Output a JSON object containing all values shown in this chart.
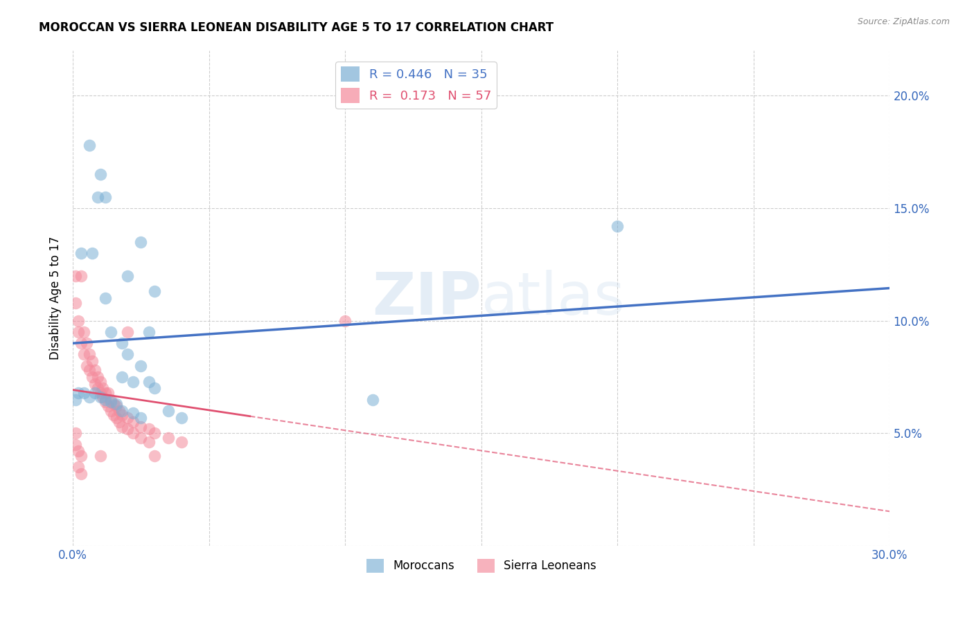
{
  "title": "MOROCCAN VS SIERRA LEONEAN DISABILITY AGE 5 TO 17 CORRELATION CHART",
  "source": "Source: ZipAtlas.com",
  "ylabel": "Disability Age 5 to 17",
  "xlim": [
    0,
    0.3
  ],
  "ylim": [
    0,
    0.22
  ],
  "xticks": [
    0.0,
    0.05,
    0.1,
    0.15,
    0.2,
    0.25,
    0.3
  ],
  "yticks": [
    0.0,
    0.05,
    0.1,
    0.15,
    0.2
  ],
  "blue_R": 0.446,
  "blue_N": 35,
  "pink_R": 0.173,
  "pink_N": 57,
  "blue_color": "#7BAFD4",
  "pink_color": "#F4899A",
  "blue_line_color": "#4472C4",
  "pink_line_color": "#E05070",
  "blue_points": [
    [
      0.006,
      0.178
    ],
    [
      0.01,
      0.165
    ],
    [
      0.009,
      0.155
    ],
    [
      0.012,
      0.155
    ],
    [
      0.003,
      0.13
    ],
    [
      0.007,
      0.13
    ],
    [
      0.025,
      0.135
    ],
    [
      0.02,
      0.12
    ],
    [
      0.012,
      0.11
    ],
    [
      0.03,
      0.113
    ],
    [
      0.014,
      0.095
    ],
    [
      0.018,
      0.09
    ],
    [
      0.02,
      0.085
    ],
    [
      0.025,
      0.08
    ],
    [
      0.028,
      0.095
    ],
    [
      0.018,
      0.075
    ],
    [
      0.022,
      0.073
    ],
    [
      0.028,
      0.073
    ],
    [
      0.03,
      0.07
    ],
    [
      0.002,
      0.068
    ],
    [
      0.004,
      0.068
    ],
    [
      0.006,
      0.066
    ],
    [
      0.008,
      0.068
    ],
    [
      0.01,
      0.066
    ],
    [
      0.012,
      0.065
    ],
    [
      0.014,
      0.064
    ],
    [
      0.016,
      0.063
    ],
    [
      0.018,
      0.06
    ],
    [
      0.022,
      0.059
    ],
    [
      0.025,
      0.057
    ],
    [
      0.035,
      0.06
    ],
    [
      0.04,
      0.057
    ],
    [
      0.2,
      0.142
    ],
    [
      0.11,
      0.065
    ],
    [
      0.001,
      0.065
    ]
  ],
  "pink_points": [
    [
      0.001,
      0.12
    ],
    [
      0.003,
      0.12
    ],
    [
      0.001,
      0.108
    ],
    [
      0.002,
      0.1
    ],
    [
      0.002,
      0.095
    ],
    [
      0.004,
      0.095
    ],
    [
      0.003,
      0.09
    ],
    [
      0.005,
      0.09
    ],
    [
      0.004,
      0.085
    ],
    [
      0.006,
      0.085
    ],
    [
      0.005,
      0.08
    ],
    [
      0.007,
      0.082
    ],
    [
      0.006,
      0.078
    ],
    [
      0.008,
      0.078
    ],
    [
      0.007,
      0.075
    ],
    [
      0.009,
      0.075
    ],
    [
      0.008,
      0.072
    ],
    [
      0.01,
      0.073
    ],
    [
      0.009,
      0.07
    ],
    [
      0.011,
      0.07
    ],
    [
      0.01,
      0.068
    ],
    [
      0.012,
      0.068
    ],
    [
      0.011,
      0.066
    ],
    [
      0.013,
      0.068
    ],
    [
      0.012,
      0.064
    ],
    [
      0.014,
      0.065
    ],
    [
      0.013,
      0.062
    ],
    [
      0.015,
      0.063
    ],
    [
      0.014,
      0.06
    ],
    [
      0.016,
      0.062
    ],
    [
      0.015,
      0.058
    ],
    [
      0.017,
      0.06
    ],
    [
      0.016,
      0.057
    ],
    [
      0.018,
      0.058
    ],
    [
      0.017,
      0.055
    ],
    [
      0.02,
      0.057
    ],
    [
      0.018,
      0.053
    ],
    [
      0.022,
      0.055
    ],
    [
      0.02,
      0.052
    ],
    [
      0.025,
      0.053
    ],
    [
      0.022,
      0.05
    ],
    [
      0.028,
      0.052
    ],
    [
      0.025,
      0.048
    ],
    [
      0.03,
      0.05
    ],
    [
      0.028,
      0.046
    ],
    [
      0.035,
      0.048
    ],
    [
      0.04,
      0.046
    ],
    [
      0.001,
      0.05
    ],
    [
      0.001,
      0.045
    ],
    [
      0.002,
      0.042
    ],
    [
      0.003,
      0.04
    ],
    [
      0.002,
      0.035
    ],
    [
      0.003,
      0.032
    ],
    [
      0.03,
      0.04
    ],
    [
      0.1,
      0.1
    ],
    [
      0.01,
      0.04
    ],
    [
      0.02,
      0.095
    ]
  ]
}
